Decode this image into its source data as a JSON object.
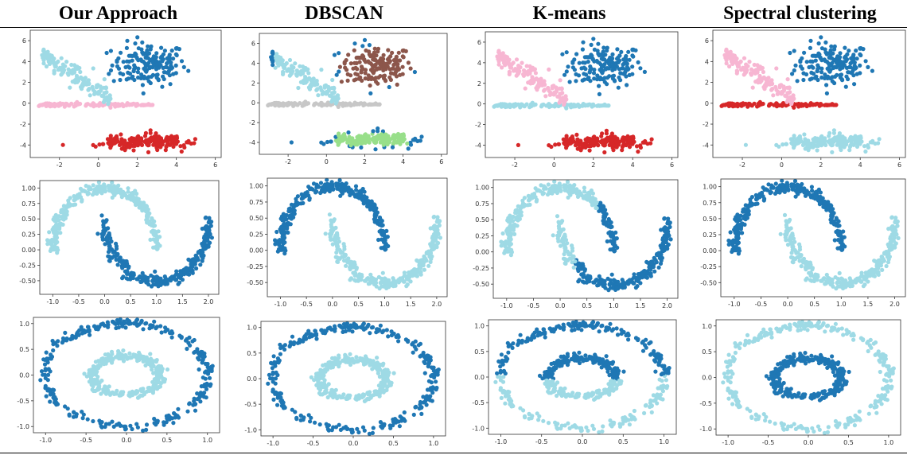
{
  "columns": [
    {
      "title": "Our Approach"
    },
    {
      "title": "DBSCAN"
    },
    {
      "title": "K-means"
    },
    {
      "title": "Spectral clustering"
    }
  ],
  "colors": {
    "dark_blue": "#1f77b4",
    "light_blue": "#9edae5",
    "pink": "#f7b6d2",
    "red": "#d62728",
    "brown": "#8c564b",
    "gray": "#c7c7c7",
    "green": "#98df8a"
  },
  "chart_data": [
    {
      "type": "scatter",
      "dataset": "blobs",
      "xlim": [
        -3.5,
        6.3
      ],
      "ylim": [
        -5.2,
        7.0
      ],
      "xticks": [
        -2,
        0,
        2,
        4,
        6
      ],
      "yticks": [
        -4,
        -2,
        0,
        2,
        4,
        6
      ],
      "methods": {
        "Our Approach": {
          "blob_tr": "dark_blue",
          "diag": "light_blue",
          "stripe": "pink",
          "blob_br": "red",
          "noise": ""
        },
        "DBSCAN": {
          "blob_tr": "brown",
          "diag": "light_blue",
          "stripe": "gray",
          "blob_br": "green",
          "noise": "dark_blue"
        },
        "K-means": {
          "blob_tr": "dark_blue",
          "diag": "pink",
          "stripe": "light_blue",
          "blob_br": "red",
          "noise": ""
        },
        "Spectral clustering": {
          "blob_tr": "dark_blue",
          "diag": "pink",
          "stripe": "red",
          "blob_br": "light_blue",
          "noise": ""
        }
      }
    },
    {
      "type": "scatter",
      "dataset": "moons",
      "xlim": [
        -1.25,
        2.2
      ],
      "ylim": [
        -0.72,
        1.12
      ],
      "xticks": [
        -1.0,
        -0.5,
        0.0,
        0.5,
        1.0,
        1.5,
        2.0
      ],
      "yticks": [
        -0.5,
        -0.25,
        0.0,
        0.25,
        0.5,
        0.75,
        1.0
      ],
      "methods": {
        "Our Approach": {
          "upper": "light_blue",
          "lower": "dark_blue",
          "split": "none"
        },
        "DBSCAN": {
          "upper": "dark_blue",
          "lower": "light_blue",
          "split": "none"
        },
        "K-means": {
          "upper": "light_blue",
          "lower": "dark_blue",
          "split": "kmeans"
        },
        "Spectral clustering": {
          "upper": "dark_blue",
          "lower": "light_blue",
          "split": "none"
        }
      }
    },
    {
      "type": "scatter",
      "dataset": "circles",
      "xlim": [
        -1.15,
        1.15
      ],
      "ylim": [
        -1.12,
        1.12
      ],
      "xticks": [
        -1.0,
        -0.5,
        0.0,
        0.5,
        1.0
      ],
      "yticks": [
        -1.0,
        -0.5,
        0.0,
        0.5,
        1.0
      ],
      "methods": {
        "Our Approach": {
          "outer": "dark_blue",
          "inner": "light_blue",
          "split": "none"
        },
        "DBSCAN": {
          "outer": "dark_blue",
          "inner": "light_blue",
          "split": "none"
        },
        "K-means": {
          "outer": "light_blue",
          "inner": "dark_blue",
          "split": "kmeans"
        },
        "Spectral clustering": {
          "outer": "light_blue",
          "inner": "dark_blue",
          "split": "none"
        }
      }
    }
  ]
}
